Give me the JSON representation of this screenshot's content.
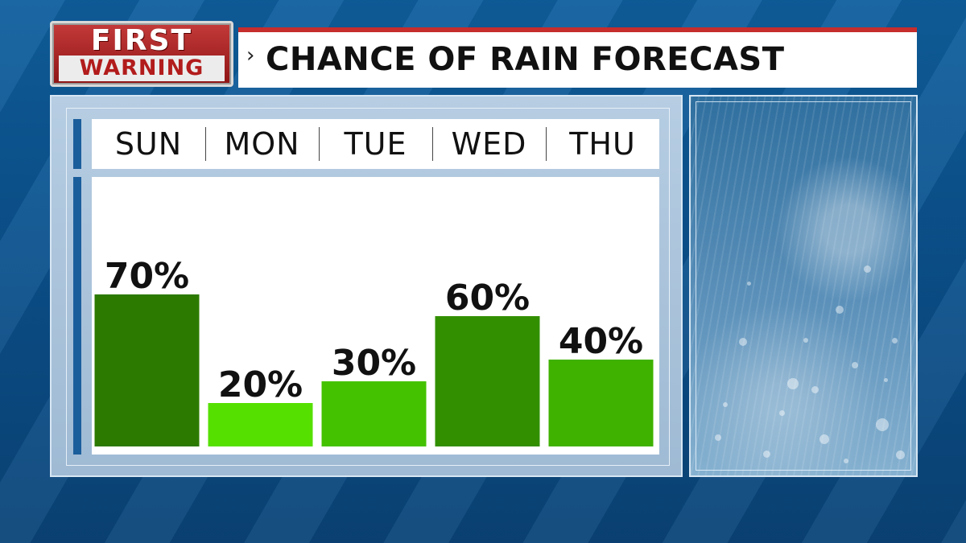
{
  "header": {
    "logo_top": "FIRST",
    "logo_bottom": "WARNING",
    "chevron": "›",
    "title": "CHANCE OF RAIN FORECAST"
  },
  "chart_data": {
    "type": "bar",
    "categories": [
      "SUN",
      "MON",
      "TUE",
      "WED",
      "THU"
    ],
    "values": [
      70,
      20,
      30,
      60,
      40
    ],
    "value_labels": [
      "70%",
      "20%",
      "30%",
      "60%",
      "40%"
    ],
    "title": "CHANCE OF RAIN FORECAST",
    "ylim": [
      0,
      100
    ],
    "grid": false,
    "bar_colors": [
      "#2c7a00",
      "#55e000",
      "#44c200",
      "#328f00",
      "#3fb200"
    ]
  },
  "colors": {
    "accent_red": "#c62d2d",
    "panel_blue": "#1b5e9c"
  }
}
